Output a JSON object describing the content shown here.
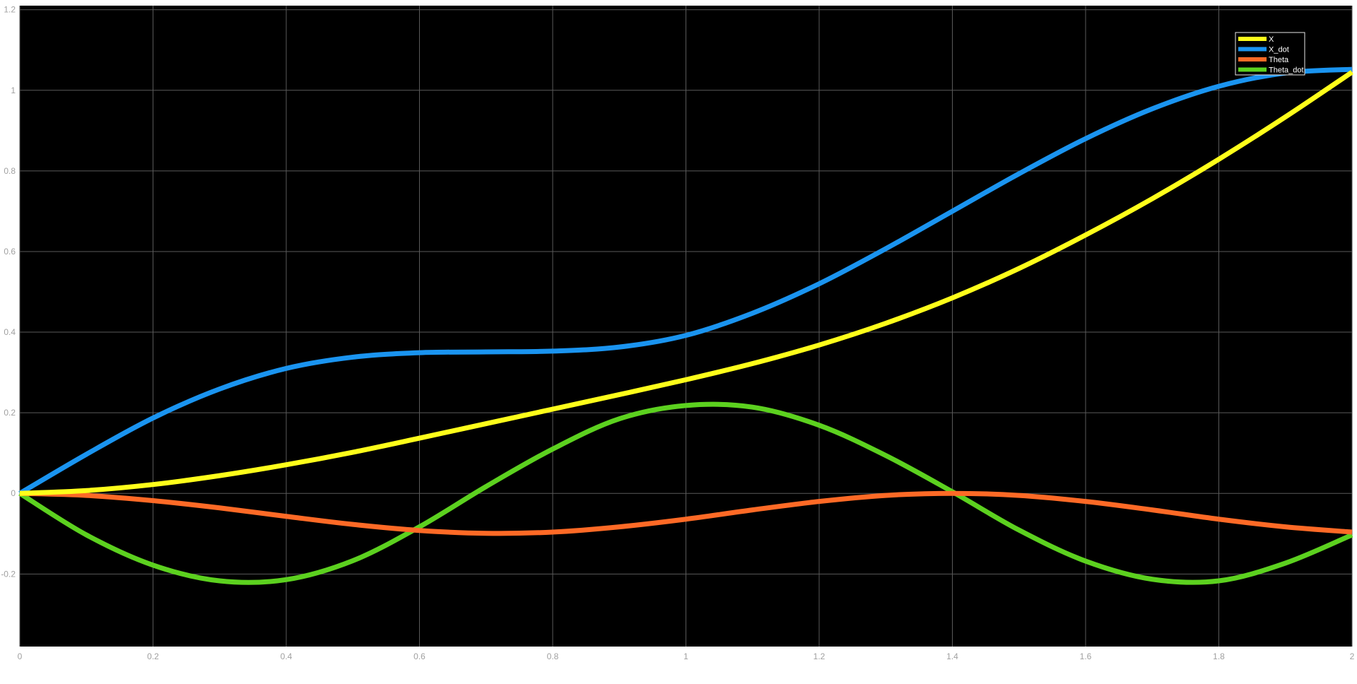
{
  "chart_data": {
    "type": "line",
    "xlim": [
      0,
      2
    ],
    "ylim": [
      -0.38,
      1.21
    ],
    "x_ticks": [
      0,
      0.2,
      0.4,
      0.6,
      0.8,
      1,
      1.2,
      1.4,
      1.6,
      1.8,
      2
    ],
    "x_tick_labels": [
      "0",
      "0.2",
      "0.4",
      "0.6",
      "0.8",
      "1",
      "1.2",
      "1.4",
      "1.6",
      "1.8",
      "2"
    ],
    "y_ticks": [
      -0.2,
      0,
      0.2,
      0.4,
      0.6,
      0.8,
      1,
      1.2
    ],
    "y_tick_labels": [
      "-0.2",
      "0",
      "0.2",
      "0.4",
      "0.6",
      "0.8",
      "1",
      "1.2"
    ],
    "grid": true,
    "legend_position": "top-right",
    "background_color": "#000000",
    "grid_color": "#5a5a5a",
    "x": [
      0,
      0.1,
      0.2,
      0.3,
      0.4,
      0.5,
      0.6,
      0.7,
      0.8,
      0.9,
      1.0,
      1.1,
      1.2,
      1.3,
      1.4,
      1.5,
      1.6,
      1.7,
      1.8,
      1.9,
      2.0
    ],
    "series": [
      {
        "name": "X",
        "color": "#ffff1a",
        "values": [
          0,
          0.007,
          0.022,
          0.044,
          0.071,
          0.102,
          0.137,
          0.173,
          0.209,
          0.245,
          0.282,
          0.322,
          0.368,
          0.422,
          0.485,
          0.558,
          0.641,
          0.731,
          0.829,
          0.934,
          1.045
        ]
      },
      {
        "name": "X_dot",
        "color": "#1a94f0",
        "values": [
          0,
          0.097,
          0.187,
          0.259,
          0.31,
          0.338,
          0.349,
          0.351,
          0.353,
          0.363,
          0.392,
          0.447,
          0.52,
          0.607,
          0.7,
          0.793,
          0.88,
          0.954,
          1.01,
          1.043,
          1.052
        ]
      },
      {
        "name": "Theta",
        "color": "#ff6a26",
        "values": [
          0,
          -0.005,
          -0.018,
          -0.036,
          -0.057,
          -0.077,
          -0.092,
          -0.099,
          -0.096,
          -0.083,
          -0.064,
          -0.041,
          -0.02,
          -0.005,
          0.0,
          -0.005,
          -0.02,
          -0.041,
          -0.064,
          -0.083,
          -0.096
        ]
      },
      {
        "name": "Theta_dot",
        "color": "#5cd11f",
        "values": [
          0,
          -0.103,
          -0.178,
          -0.217,
          -0.214,
          -0.167,
          -0.083,
          0.017,
          0.11,
          0.185,
          0.218,
          0.214,
          0.169,
          0.094,
          0.004,
          -0.091,
          -0.168,
          -0.213,
          -0.217,
          -0.173,
          -0.103
        ]
      }
    ]
  }
}
